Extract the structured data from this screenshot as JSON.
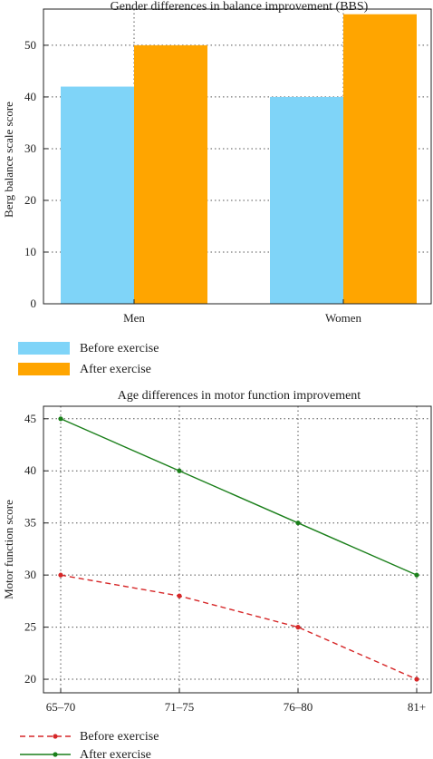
{
  "chart_data": [
    {
      "type": "bar",
      "title": "Gender differences in balance improvement (BBS)",
      "xlabel": "",
      "ylabel": "Berg balance scale score",
      "categories": [
        "Men",
        "Women"
      ],
      "series": [
        {
          "name": "Before exercise",
          "values": [
            42,
            40
          ],
          "color": "#7fd4f8"
        },
        {
          "name": "After exercise",
          "values": [
            50,
            56
          ],
          "color": "#ffa500"
        }
      ],
      "ylim": [
        0,
        57
      ],
      "yticks": [
        0,
        10,
        20,
        30,
        40,
        50
      ],
      "grid": true,
      "legend": "bottom-left"
    },
    {
      "type": "line",
      "title": "Age differences in motor function improvement",
      "xlabel": "",
      "ylabel": "Motor function score",
      "categories": [
        "65–70",
        "71–75",
        "76–80",
        "81+"
      ],
      "series": [
        {
          "name": "Before exercise",
          "values": [
            30,
            28,
            25,
            20
          ],
          "color": "#d62728",
          "style": "dashed"
        },
        {
          "name": "After exercise",
          "values": [
            45,
            40,
            35,
            30
          ],
          "color": "#1a7f1a",
          "style": "solid"
        }
      ],
      "ylim": [
        18.7,
        46.2
      ],
      "yticks": [
        20,
        25,
        30,
        35,
        40,
        45
      ],
      "grid": true,
      "legend": "bottom-left"
    }
  ]
}
